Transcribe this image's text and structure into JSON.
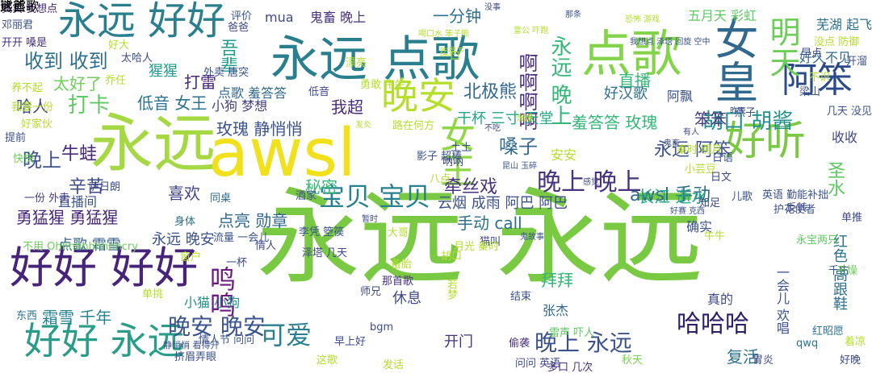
{
  "words": [
    {
      "t": "永远 永远",
      "c": "#7ac943"
    },
    {
      "t": "永远",
      "c": "#a6d843"
    },
    {
      "t": "awsl",
      "c": "#f0e11c"
    },
    {
      "t": "好好 好好",
      "c": "#46247a"
    },
    {
      "t": "永远 点歌",
      "c": "#2a7f8e"
    },
    {
      "t": "点歌",
      "c": "#84d44b"
    },
    {
      "t": "永远 好好",
      "c": "#2a7f8e"
    },
    {
      "t": "好好 永远",
      "c": "#2a9d89"
    },
    {
      "t": "女皇",
      "c": "#31688e"
    },
    {
      "t": "晚安",
      "c": "#b5de2b"
    },
    {
      "t": "好听",
      "c": "#7ac943"
    },
    {
      "t": "阿笨",
      "c": "#2a4a8a"
    },
    {
      "t": "女王",
      "c": "#8fd744"
    },
    {
      "t": "明天",
      "c": "#6dcd59"
    },
    {
      "t": "宝贝 宝贝",
      "c": "#26828e"
    },
    {
      "t": "晚上 晚上",
      "c": "#46327e"
    },
    {
      "t": "永远 晚上",
      "c": "#35b779"
    },
    {
      "t": "哈哈哈",
      "c": "#2d1f63"
    },
    {
      "t": "可爱",
      "c": "#2a7f8e"
    },
    {
      "t": "鸣鸣",
      "c": "#6a1c80"
    },
    {
      "t": "晚上 永远",
      "c": "#3b528b"
    },
    {
      "t": "晚安 晚安",
      "c": "#3a548c"
    },
    {
      "t": "胡口 胡酱",
      "c": "#21918c"
    },
    {
      "t": "收到 收到",
      "c": "#2d708e"
    },
    {
      "t": "啊啊啊啊",
      "c": "#472c7a"
    },
    {
      "t": "北极熊",
      "c": "#31688e"
    },
    {
      "t": "打卡",
      "c": "#5ec962"
    },
    {
      "t": "永远 阿笨",
      "c": "#3b528b"
    },
    {
      "t": "awsl 手动",
      "c": "#31688e"
    },
    {
      "t": "牵丝戏",
      "c": "#46327e"
    },
    {
      "t": "嗓子",
      "c": "#31688e"
    },
    {
      "t": "晚上",
      "c": "#3b528b"
    },
    {
      "t": "吾辈",
      "c": "#1f9e89"
    },
    {
      "t": "秘密",
      "c": "#35b779"
    },
    {
      "t": "喜欢",
      "c": "#414487"
    },
    {
      "t": "长江 逝水",
      "c": "#22a884"
    },
    {
      "t": "牛蛙",
      "c": "#482878"
    },
    {
      "t": "辛苦",
      "c": "#3e4989"
    },
    {
      "t": "一分钟",
      "c": "#2d708e"
    },
    {
      "t": "低音 女王",
      "c": "#2c728e"
    },
    {
      "t": "打雷",
      "c": "#482878"
    },
    {
      "t": "羞答答 玫瑰",
      "c": "#35b779"
    },
    {
      "t": "玫瑰 静悄悄",
      "c": "#3b528b"
    },
    {
      "t": "勇猛猩 勇猛猩",
      "c": "#482878"
    },
    {
      "t": "点亮 勋章",
      "c": "#31688e"
    },
    {
      "t": "手动 call",
      "c": "#2d708e"
    },
    {
      "t": "直播",
      "c": "#35b779"
    },
    {
      "t": "太好了",
      "c": "#6ece58"
    },
    {
      "t": "我超",
      "c": "#472d7b"
    },
    {
      "t": "好汉歌",
      "c": "#2d708e"
    },
    {
      "t": "笨笨",
      "c": "#443983"
    },
    {
      "t": "干杯 三寸 天堂",
      "c": "#22a884"
    },
    {
      "t": "永远 晚安",
      "c": "#3b528b"
    },
    {
      "t": "点歌 霜雪",
      "c": "#35608d"
    },
    {
      "t": "霜雪 千年",
      "c": "#26828e"
    },
    {
      "t": "拜拜",
      "c": "#35b779"
    },
    {
      "t": "复活",
      "c": "#2d708e"
    },
    {
      "t": "开门",
      "c": "#46327e"
    },
    {
      "t": "圣水",
      "c": "#5ec962"
    },
    {
      "t": "哈人",
      "c": "#3e4989"
    },
    {
      "t": "猩猩",
      "c": "#1f9e89"
    },
    {
      "t": "云烟 成雨 阿巴 阿巴",
      "c": "#3b528b"
    },
    {
      "t": "确实",
      "c": "#3b528b"
    },
    {
      "t": "小猫 小狗",
      "c": "#21918c"
    },
    {
      "t": "休息",
      "c": "#3e4989"
    },
    {
      "t": "五月天 彩虹",
      "c": "#5ec962"
    },
    {
      "t": "芜湖 起飞",
      "c": "#2d708e"
    },
    {
      "t": "好久不见",
      "c": "#31688e"
    },
    {
      "t": "阿飘",
      "c": "#3b528b"
    },
    {
      "t": "小狗 梦想",
      "c": "#433e85"
    },
    {
      "t": "点歌 羞答答",
      "c": "#31688e"
    },
    {
      "t": "红色 高跟鞋",
      "c": "#2d708e"
    },
    {
      "t": "收收",
      "c": "#3e4989"
    },
    {
      "t": "安安",
      "c": "#b5de2b"
    },
    {
      "t": "一会儿 欢唱",
      "c": "#3b528b"
    },
    {
      "t": "真的",
      "c": "#3e4989"
    },
    {
      "t": "张杰",
      "c": "#31688e"
    },
    {
      "t": "直播间",
      "c": "#3b528b"
    },
    {
      "t": "mua",
      "c": "#3e4989"
    },
    {
      "t": "鬼畜 晚上",
      "c": "#46327e"
    },
    {
      "t": "真实 我想点",
      "c": "#482878"
    },
    {
      "t": "邓丽君",
      "c": "#3b528b"
    },
    {
      "t": "开开 嗓是",
      "c": "#46327e"
    },
    {
      "t": "一份 外卖",
      "c": "#443983"
    },
    {
      "t": "不用 Ohhhhhhhhhhcry",
      "c": "#6ece58"
    },
    {
      "t": "那首歌",
      "c": "#46327e"
    },
    {
      "t": "bgm",
      "c": "#3e4989"
    },
    {
      "t": "qwq",
      "c": "#2d708e"
    },
    {
      "t": "单挑",
      "c": "#b5de2b"
    },
    {
      "t": "偷袭",
      "c": "#472c7a"
    },
    {
      "t": "结束",
      "c": "#3b528b"
    },
    {
      "t": "东西",
      "c": "#2d708e"
    },
    {
      "t": "红昭愿",
      "c": "#2d708e"
    },
    {
      "t": "护花使者",
      "c": "#3b528b"
    },
    {
      "t": "单推",
      "c": "#3e4989"
    },
    {
      "t": "这歌",
      "c": "#b5de2b"
    },
    {
      "t": "千古",
      "c": "#3b528b"
    },
    {
      "t": "干燥",
      "c": "#6ece58"
    },
    {
      "t": "永宝两只",
      "c": "#5ec962"
    },
    {
      "t": "好晚",
      "c": "#3e4989"
    },
    {
      "t": "挤眉弄眼",
      "c": "#3b528b"
    },
    {
      "t": "发话",
      "c": "#b5de2b"
    },
    {
      "t": "问问 英语",
      "c": "#3e4989"
    },
    {
      "t": "多口 几次",
      "c": "#46327e"
    },
    {
      "t": "秋天",
      "c": "#7ad151"
    },
    {
      "t": "胃炎",
      "c": "#3e4989"
    },
    {
      "t": "着凉",
      "c": "#b5de2b"
    },
    {
      "t": "情人节 问问",
      "c": "#3b528b"
    },
    {
      "t": "早上好",
      "c": "#3e4989"
    },
    {
      "t": "静悄悄 看得开",
      "c": "#3b528b"
    },
    {
      "t": "雷声 吓人",
      "c": "#5ec962"
    },
    {
      "t": "一杯",
      "c": "#3e4989"
    },
    {
      "t": "窗户",
      "c": "#b5de2b"
    },
    {
      "t": "情人",
      "c": "#3e4989"
    },
    {
      "t": "流量 一会儿",
      "c": "#3b528b"
    },
    {
      "t": "身体",
      "c": "#2d708e"
    },
    {
      "t": "同桌",
      "c": "#31688e"
    },
    {
      "t": "酒家",
      "c": "#3b528b"
    },
    {
      "t": "萨日朗",
      "c": "#3e4989"
    },
    {
      "t": "快快",
      "c": "#6ece58"
    },
    {
      "t": "提前",
      "c": "#3b528b"
    },
    {
      "t": "路在何方",
      "c": "#b5de2b"
    },
    {
      "t": "好家伙",
      "c": "#b5de2b"
    },
    {
      "t": "我要一份",
      "c": "#b5de2b"
    },
    {
      "t": "养不起",
      "c": "#b5de2b"
    },
    {
      "t": "乔任",
      "c": "#b5de2b"
    },
    {
      "t": "太哈人",
      "c": "#3e4989"
    },
    {
      "t": "好大",
      "c": "#b5de2b"
    },
    {
      "t": "外卖 唐突",
      "c": "#3b528b"
    },
    {
      "t": "评价",
      "c": "#3b528b"
    },
    {
      "t": "那条",
      "c": "#3b528b"
    },
    {
      "t": "没事",
      "c": "#3e4989"
    },
    {
      "t": "恐怖 游戏",
      "c": "#b5de2b"
    },
    {
      "t": "我想点 泽塔 回旋 空中",
      "c": "#3b528b"
    },
    {
      "t": "不识",
      "c": "#b5de2b"
    },
    {
      "t": "没点 防御",
      "c": "#b5de2b"
    },
    {
      "t": "早点",
      "c": "#3e4989"
    },
    {
      "t": "开溜",
      "c": "#3b528b"
    },
    {
      "t": "几天 没见",
      "c": "#3b528b"
    },
    {
      "t": "昨天",
      "c": "#3e4989"
    },
    {
      "t": "有人",
      "c": "#3e4989"
    },
    {
      "t": "秦时 明月",
      "c": "#b5de2b"
    },
    {
      "t": "英语 勤能补拙",
      "c": "#3b528b"
    },
    {
      "t": "感觉",
      "c": "#3e4989"
    },
    {
      "t": "反转",
      "c": "#3e4989"
    },
    {
      "t": "牛牛",
      "c": "#b5de2b"
    },
    {
      "t": "好赛 克西",
      "c": "#3b528b"
    },
    {
      "t": "猫叫",
      "c": "#3e4989"
    },
    {
      "t": "月光 秦时",
      "c": "#b5de2b"
    },
    {
      "t": "鬼故事",
      "c": "#3b528b"
    },
    {
      "t": "暂时",
      "c": "#3e4989"
    },
    {
      "t": "大哥",
      "c": "#b5de2b"
    },
    {
      "t": "李凭 箜篌",
      "c": "#3b528b"
    },
    {
      "t": "泽塔 几天",
      "c": "#3e4989"
    },
    {
      "t": "发炎",
      "c": "#b5de2b"
    },
    {
      "t": "勇敢 牛牛",
      "c": "#b5de2b"
    },
    {
      "t": "影子 超棒",
      "c": "#3b528b"
    },
    {
      "t": "八点",
      "c": "#b5de2b"
    },
    {
      "t": "不吃",
      "c": "#3e4989"
    },
    {
      "t": "爆爆",
      "c": "#b5de2b"
    },
    {
      "t": "昆山 玉碎",
      "c": "#3b528b"
    },
    {
      "t": "吃得下",
      "c": "#b5de2b"
    },
    {
      "t": "喝口水 笨子熊",
      "c": "#b5de2b"
    },
    {
      "t": "雷公 吓跑",
      "c": "#b5de2b"
    },
    {
      "t": "鬼畜",
      "c": "#3e4989"
    },
    {
      "t": "小芸豆",
      "c": "#b5de2b"
    },
    {
      "t": "燕子",
      "c": "#3b528b"
    },
    {
      "t": "胡口",
      "c": "#b5de2b"
    },
    {
      "t": "备胎",
      "c": "#b5de2b"
    },
    {
      "t": "师兄",
      "c": "#3e4989"
    },
    {
      "t": "梁山",
      "c": "#3b528b"
    },
    {
      "t": "爸爸",
      "c": "#3e4989"
    },
    {
      "t": "呐呐",
      "c": "#3e4989"
    },
    {
      "t": "土土",
      "c": "#3b528b"
    },
    {
      "t": "日语",
      "c": "#3b528b"
    },
    {
      "t": "日文",
      "c": "#3e4989"
    },
    {
      "t": "若梦",
      "c": "#b5de2b"
    },
    {
      "t": "漂亮",
      "c": "#b5de2b"
    },
    {
      "t": "低音",
      "c": "#3e4989"
    },
    {
      "t": "一口",
      "c": "#b5de2b"
    },
    {
      "t": "儿歌",
      "c": "#3b528b"
    },
    {
      "t": "知足",
      "c": "#3e4989"
    },
    {
      "t": "熊熊",
      "c": "#b5de2b"
    },
    {
      "t": "这首歌",
      "c": "#b5de2b"
    }
  ]
}
